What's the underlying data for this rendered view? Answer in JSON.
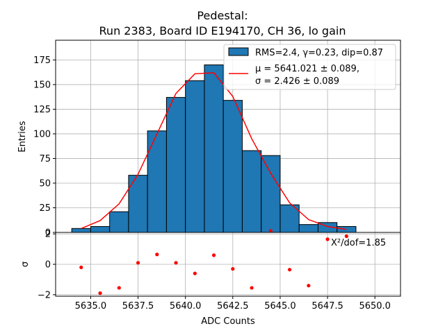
{
  "chart_data": {
    "type": "histogram",
    "title_line1": "Pedestal:",
    "title_line2": "Run 2383, Board ID E194170, CH 36, lo gain",
    "top_panel": {
      "ylabel": "Entries",
      "ylim": [
        0,
        195
      ],
      "yticks": [
        0,
        25,
        50,
        75,
        100,
        125,
        150,
        175
      ],
      "ytick_labels": [
        "0",
        "25",
        "50",
        "75",
        "100",
        "125",
        "150",
        "175"
      ],
      "bin_edges": [
        5634,
        5635,
        5636,
        5637,
        5638,
        5639,
        5640,
        5641,
        5642,
        5643,
        5644,
        5645,
        5646,
        5647,
        5648,
        5649
      ],
      "counts": [
        4,
        6,
        21,
        58,
        103,
        137,
        154,
        170,
        134,
        83,
        78,
        28,
        8,
        10,
        6
      ],
      "fit_x": [
        5634.5,
        5635.5,
        5636.5,
        5637.5,
        5638.5,
        5639.5,
        5640.5,
        5641.5,
        5642.5,
        5643.5,
        5644.5,
        5645.5,
        5646.5,
        5647.5,
        5648.5
      ],
      "fit_y": [
        4,
        12,
        29,
        59,
        100,
        141,
        161,
        162,
        138,
        95,
        60,
        30,
        13,
        6,
        3
      ],
      "legend": {
        "hist_label": "RMS=2.4, γ=0.23, dip=0.87",
        "fit_label_line1": "μ = 5641.021 ± 0.089,",
        "fit_label_line2": "σ = 2.426 ± 0.089"
      },
      "colors": {
        "bar": "#1f77b4",
        "bar_edge": "#000000",
        "fit": "#ff0000",
        "grid": "#b0b0b0"
      }
    },
    "bottom_panel": {
      "ylabel": "σ",
      "xlabel": "ADC Counts",
      "ylim": [
        -2.1,
        2.1
      ],
      "yticks": [
        -2,
        0,
        2
      ],
      "ytick_labels": [
        "−2",
        "0",
        "2"
      ],
      "residual_x": [
        5634.5,
        5635.5,
        5636.5,
        5637.5,
        5638.5,
        5639.5,
        5640.5,
        5641.5,
        5642.5,
        5643.5,
        5644.5,
        5645.5,
        5646.5,
        5647.5,
        5648.5
      ],
      "residual_y": [
        -0.2,
        -1.9,
        -1.55,
        0.1,
        0.65,
        0.1,
        -0.6,
        0.6,
        -0.3,
        -1.55,
        2.2,
        -0.35,
        -1.4,
        1.65,
        1.85
      ],
      "chi2_text": "X²/dof=1.85",
      "point_color": "#ff0000"
    },
    "xaxis": {
      "xlim": [
        5633.15,
        5651.35
      ],
      "xticks": [
        5635,
        5637.5,
        5640,
        5642.5,
        5645,
        5647.5,
        5650
      ],
      "xtick_labels": [
        "5635.0",
        "5637.5",
        "5640.0",
        "5642.5",
        "5645.0",
        "5647.5",
        "5650.0"
      ]
    }
  }
}
